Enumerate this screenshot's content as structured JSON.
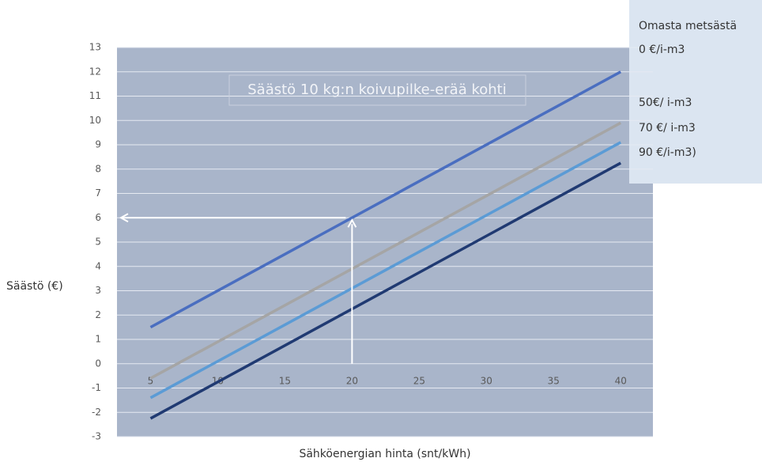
{
  "chart_data": {
    "type": "line",
    "title": "Säästö 10 kg:n koivupilke-erää kohti",
    "x_label": "Sähköenergian hinta (snt/kWh)",
    "y_label": "Säästö (€)",
    "legend_title": "Omasta metsästä",
    "x": [
      5,
      40
    ],
    "xlim": [
      2.5,
      42.4
    ],
    "xticks": [
      5,
      10,
      15,
      20,
      25,
      30,
      35,
      40
    ],
    "ylim": [
      -3,
      13
    ],
    "yticks": [
      -3,
      -2,
      -1,
      0,
      1,
      2,
      3,
      4,
      5,
      6,
      7,
      8,
      9,
      10,
      11,
      12,
      13
    ],
    "grid": true,
    "series": [
      {
        "name": "0 €/i-m3",
        "color": "#4a6ec0",
        "values": [
          1.5,
          12.0
        ]
      },
      {
        "name": "50€/ i-m3",
        "color": "#a5a5a5",
        "values": [
          -0.6,
          9.9
        ]
      },
      {
        "name": "70 €/ i-m3",
        "color": "#5b9bd5",
        "values": [
          -1.4,
          9.1
        ]
      },
      {
        "name": "90 €/i-m3)",
        "color": "#203a72",
        "values": [
          -2.25,
          8.25
        ]
      }
    ],
    "guide": {
      "x": 20,
      "y": 6
    }
  }
}
